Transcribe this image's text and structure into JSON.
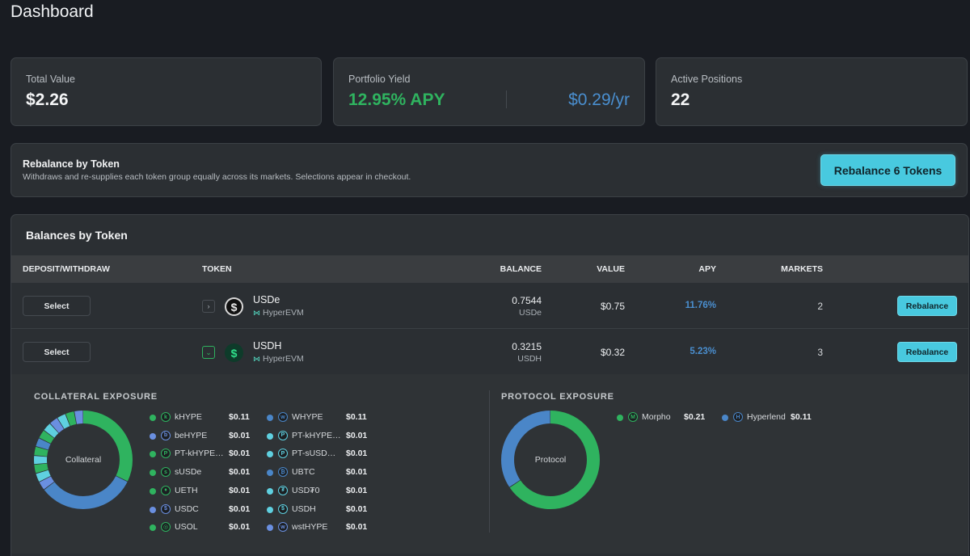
{
  "page": {
    "title": "Dashboard"
  },
  "stats": {
    "total_value": {
      "label": "Total Value",
      "value": "$2.26"
    },
    "portfolio_yield": {
      "label": "Portfolio Yield",
      "apy": "12.95% APY",
      "per_year": "$0.29/yr"
    },
    "active_positions": {
      "label": "Active Positions",
      "value": "22"
    }
  },
  "rebalance": {
    "title": "Rebalance by Token",
    "description": "Withdraws and re-supplies each token group equally across its markets. Selections appear in checkout.",
    "button": "Rebalance 6 Tokens"
  },
  "balances": {
    "title": "Balances by Token",
    "columns": {
      "action": "DEPOSIT/WITHDRAW",
      "token": "TOKEN",
      "balance": "BALANCE",
      "value": "VALUE",
      "apy": "APY",
      "markets": "MARKETS"
    },
    "rows": [
      {
        "select": "Select",
        "chevron": "›",
        "icon": "$",
        "token": "USDe",
        "chain": "HyperEVM",
        "balance": "0.7544",
        "symbol": "USDe",
        "value": "$0.75",
        "apy": "11.76%",
        "markets": "2",
        "rebalance": "Rebalance"
      },
      {
        "select": "Select",
        "chevron": "⌄",
        "icon": "$",
        "token": "USDH",
        "chain": "HyperEVM",
        "balance": "0.3215",
        "symbol": "USDH",
        "value": "$0.32",
        "apy": "5.23%",
        "markets": "3",
        "rebalance": "Rebalance"
      }
    ]
  },
  "collateral": {
    "title": "COLLATERAL EXPOSURE",
    "center_label": "Collateral",
    "items": [
      {
        "name": "kHYPE",
        "value": "$0.11",
        "amount": 0.11,
        "color": "#2fb35f",
        "icon": "k"
      },
      {
        "name": "WHYPE",
        "value": "$0.11",
        "amount": 0.11,
        "color": "#4a86c8",
        "icon": "w"
      },
      {
        "name": "beHYPE",
        "value": "$0.01",
        "amount": 0.01,
        "color": "#6a8fe0",
        "icon": "b"
      },
      {
        "name": "PT-kHYPE…",
        "value": "$0.01",
        "amount": 0.01,
        "color": "#5fd0e0",
        "icon": "P"
      },
      {
        "name": "PT-kHYPE…",
        "value": "$0.01",
        "amount": 0.01,
        "color": "#2fb35f",
        "icon": "P"
      },
      {
        "name": "PT-sUSD…",
        "value": "$0.01",
        "amount": 0.01,
        "color": "#5fd0e0",
        "icon": "P"
      },
      {
        "name": "sUSDe",
        "value": "$0.01",
        "amount": 0.01,
        "color": "#2fb35f",
        "icon": "s"
      },
      {
        "name": "UBTC",
        "value": "$0.01",
        "amount": 0.01,
        "color": "#4a86c8",
        "icon": "₿"
      },
      {
        "name": "UETH",
        "value": "$0.01",
        "amount": 0.01,
        "color": "#2fb35f",
        "icon": "♦"
      },
      {
        "name": "USD₮0",
        "value": "$0.01",
        "amount": 0.01,
        "color": "#5fd0e0",
        "icon": "₮"
      },
      {
        "name": "USDC",
        "value": "$0.01",
        "amount": 0.01,
        "color": "#6a8fe0",
        "icon": "$"
      },
      {
        "name": "USDH",
        "value": "$0.01",
        "amount": 0.01,
        "color": "#5fd0e0",
        "icon": "$"
      },
      {
        "name": "USOL",
        "value": "$0.01",
        "amount": 0.01,
        "color": "#2fb35f",
        "icon": "◎"
      },
      {
        "name": "wstHYPE",
        "value": "$0.01",
        "amount": 0.01,
        "color": "#6a8fe0",
        "icon": "w"
      }
    ]
  },
  "protocol": {
    "title": "PROTOCOL EXPOSURE",
    "center_label": "Protocol",
    "items": [
      {
        "name": "Morpho",
        "value": "$0.21",
        "amount": 0.21,
        "color": "#2fb35f",
        "icon": "M"
      },
      {
        "name": "Hyperlend",
        "value": "$0.11",
        "amount": 0.11,
        "color": "#4a86c8",
        "icon": "H"
      }
    ]
  },
  "colors": {
    "accent": "#48c9df",
    "green": "#2fb35f",
    "blue": "#4a8fd0"
  }
}
